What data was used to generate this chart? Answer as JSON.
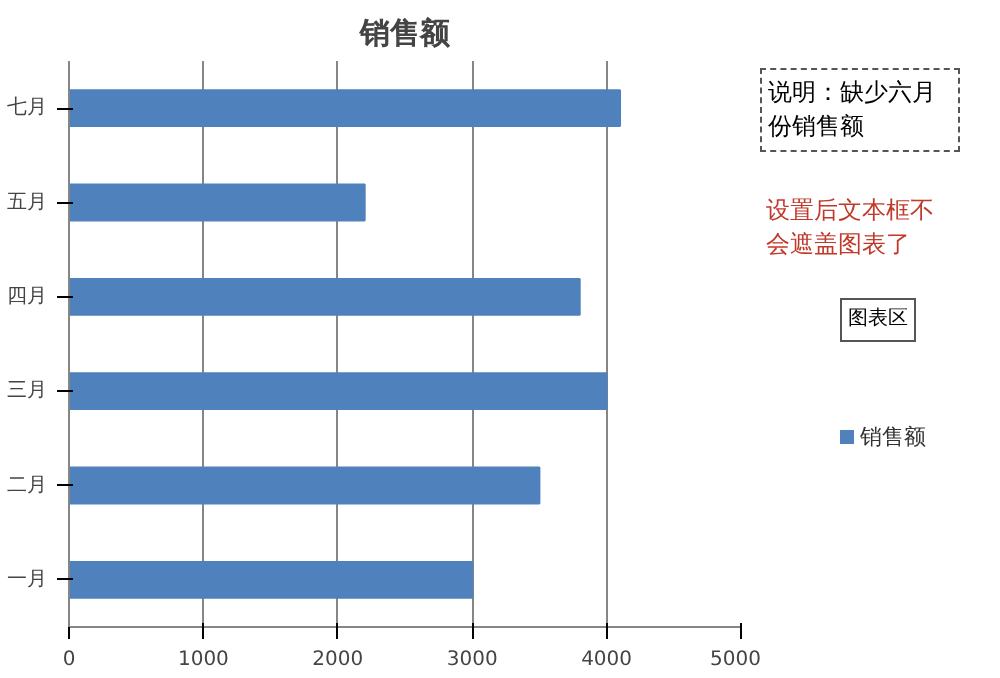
{
  "chart_data": {
    "type": "bar",
    "orientation": "horizontal",
    "title": "销售额",
    "categories": [
      "七月",
      "五月",
      "四月",
      "三月",
      "二月",
      "一月"
    ],
    "series": [
      {
        "name": "销售额",
        "color": "#4f81bd",
        "values": [
          4100,
          2200,
          3800,
          4000,
          3500,
          3000
        ]
      }
    ],
    "xlim": [
      0,
      5000
    ],
    "xticks": [
      0,
      1000,
      2000,
      3000,
      4000,
      5000
    ],
    "grid": "x",
    "legend": "right",
    "annotations": [
      "说明：缺少六月份销售额",
      "设置后文本框不会遮盖图表了",
      "图表区"
    ]
  }
}
